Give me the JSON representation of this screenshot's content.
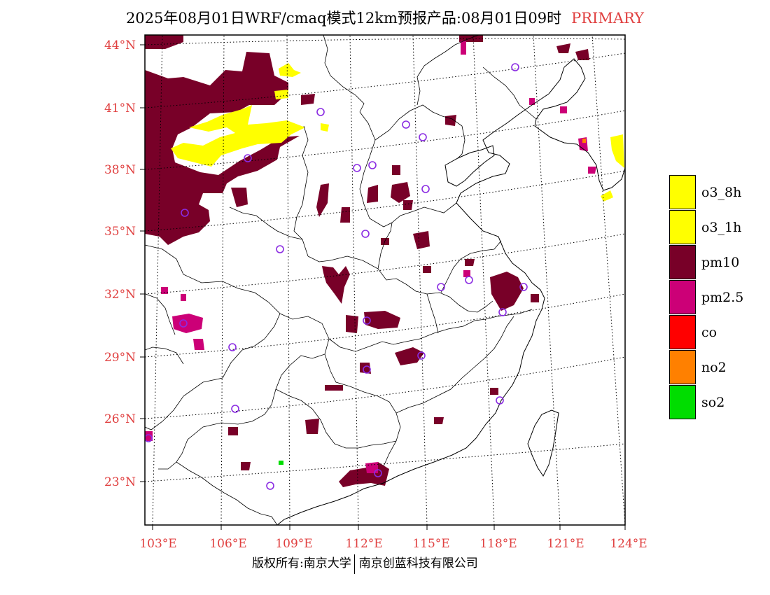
{
  "title": {
    "main": "2025年08月01日WRF/cmaq模式12km预报产品:08月01日09时",
    "tag": "PRIMARY"
  },
  "axes": {
    "lat_labels": [
      "44°N",
      "41°N",
      "38°N",
      "35°N",
      "32°N",
      "29°N",
      "26°N",
      "23°N"
    ],
    "lon_labels": [
      "103°E",
      "106°E",
      "109°E",
      "112°E",
      "115°E",
      "118°E",
      "121°E",
      "124°E"
    ]
  },
  "legend": [
    {
      "label": "o3_8h",
      "color": "#ffff00"
    },
    {
      "label": "o3_1h",
      "color": "#ffff00"
    },
    {
      "label": "pm10",
      "color": "#780028"
    },
    {
      "label": "pm2.5",
      "color": "#cc0077"
    },
    {
      "label": "co",
      "color": "#ff0000"
    },
    {
      "label": "no2",
      "color": "#ff8000"
    },
    {
      "label": "so2",
      "color": "#00dd00"
    }
  ],
  "colors": {
    "pm10": "#780028",
    "pm25": "#cc0077",
    "o3": "#ffff00",
    "so2": "#00dd00",
    "station": "#8a2be2",
    "label": "#e04040"
  },
  "copyright": {
    "left": "版权所有:南京大学",
    "right": "南京创蓝科技有限公司"
  }
}
